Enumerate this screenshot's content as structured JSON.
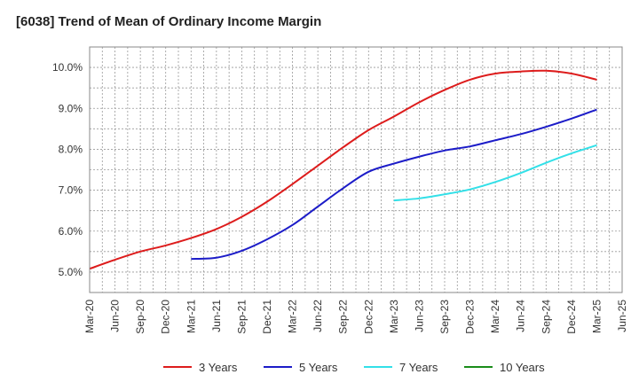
{
  "chart_data": {
    "type": "line",
    "title": "[6038]  Trend of Mean of Ordinary Income Margin",
    "xlabel": "",
    "ylabel": "",
    "x_ticks": [
      "Mar-20",
      "Jun-20",
      "Sep-20",
      "Dec-20",
      "Mar-21",
      "Jun-21",
      "Sep-21",
      "Dec-21",
      "Mar-22",
      "Jun-22",
      "Sep-22",
      "Dec-22",
      "Mar-23",
      "Jun-23",
      "Sep-23",
      "Dec-23",
      "Mar-24",
      "Jun-24",
      "Sep-24",
      "Dec-24",
      "Mar-25",
      "Jun-25"
    ],
    "y_ticks": [
      "5.0%",
      "6.0%",
      "7.0%",
      "8.0%",
      "9.0%",
      "10.0%"
    ],
    "ylim": [
      4.5,
      10.5
    ],
    "grid": true,
    "legend_position": "bottom",
    "series": [
      {
        "name": "3 Years",
        "color": "#dd1c1c",
        "x": [
          "Mar-20",
          "Jun-20",
          "Sep-20",
          "Dec-20",
          "Mar-21",
          "Jun-21",
          "Sep-21",
          "Dec-21",
          "Mar-22",
          "Jun-22",
          "Sep-22",
          "Dec-22",
          "Mar-23",
          "Jun-23",
          "Sep-23",
          "Dec-23",
          "Mar-24",
          "Jun-24",
          "Sep-24",
          "Dec-24",
          "Mar-25"
        ],
        "values": [
          5.08,
          5.3,
          5.5,
          5.65,
          5.83,
          6.05,
          6.35,
          6.72,
          7.15,
          7.6,
          8.05,
          8.47,
          8.8,
          9.15,
          9.45,
          9.7,
          9.85,
          9.9,
          9.92,
          9.85,
          9.7
        ]
      },
      {
        "name": "5 Years",
        "color": "#1c1cc8",
        "x": [
          "Mar-21",
          "Jun-21",
          "Sep-21",
          "Dec-21",
          "Mar-22",
          "Jun-22",
          "Sep-22",
          "Dec-22",
          "Mar-23",
          "Jun-23",
          "Sep-23",
          "Dec-23",
          "Mar-24",
          "Jun-24",
          "Sep-24",
          "Dec-24",
          "Mar-25"
        ],
        "values": [
          5.32,
          5.35,
          5.52,
          5.8,
          6.15,
          6.6,
          7.05,
          7.45,
          7.65,
          7.82,
          7.97,
          8.07,
          8.22,
          8.37,
          8.55,
          8.75,
          8.97
        ]
      },
      {
        "name": "7 Years",
        "color": "#33e0e8",
        "x": [
          "Mar-23",
          "Jun-23",
          "Sep-23",
          "Dec-23",
          "Mar-24",
          "Jun-24",
          "Sep-24",
          "Dec-24",
          "Mar-25"
        ],
        "values": [
          6.75,
          6.8,
          6.9,
          7.02,
          7.2,
          7.42,
          7.67,
          7.9,
          8.1
        ]
      },
      {
        "name": "10 Years",
        "color": "#1a8c1a",
        "x": [],
        "values": []
      }
    ]
  }
}
